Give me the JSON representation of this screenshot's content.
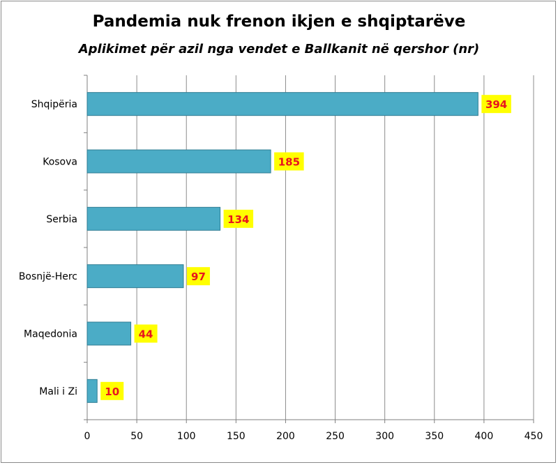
{
  "chart_data": {
    "type": "bar",
    "orientation": "horizontal",
    "title": "Pandemia nuk frenon ikjen e shqiptarëve",
    "subtitle": "Aplikimet për azil nga vendet e Ballkanit në qershor (nr)",
    "categories": [
      "Shqipëria",
      "Kosova",
      "Serbia",
      "Bosnjë-Herc",
      "Maqedonia",
      "Mali i Zi"
    ],
    "values": [
      394,
      185,
      134,
      97,
      44,
      10
    ],
    "data_labels": [
      "394",
      "185",
      "134",
      "97",
      "44",
      "10"
    ],
    "xlim": [
      0,
      450
    ],
    "xticks": [
      0,
      50,
      100,
      150,
      200,
      250,
      300,
      350,
      400,
      450
    ],
    "xtick_labels": [
      "0",
      "50",
      "100",
      "150",
      "200",
      "250",
      "300",
      "350",
      "400",
      "450"
    ],
    "grid": "vertical",
    "legend": "none",
    "colors": {
      "bar_fill": "#4bacc6",
      "bar_edge": "#2f7d93",
      "label_bg": "#ffff00",
      "label_text": "#e8141e",
      "grid": "#8c8c8c"
    }
  }
}
